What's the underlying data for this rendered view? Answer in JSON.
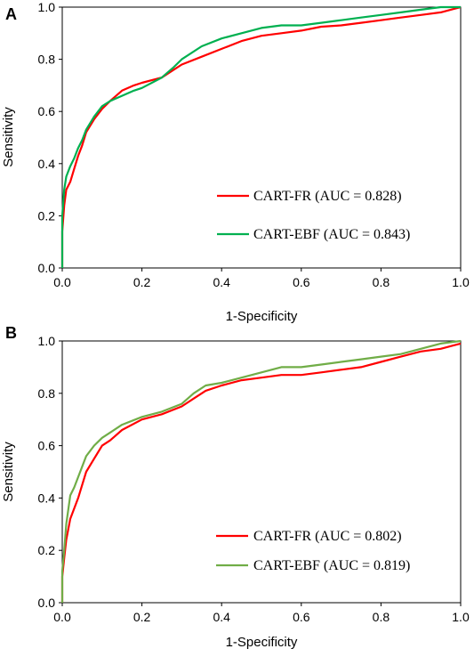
{
  "chart_data": [
    {
      "type": "line",
      "panel_label": "A",
      "xlabel": "1-Specificity",
      "ylabel": "Sensitivity",
      "xlim": [
        0,
        1
      ],
      "ylim": [
        0,
        1
      ],
      "xticks": [
        "0.0",
        "0.2",
        "0.4",
        "0.6",
        "0.8",
        "1.0"
      ],
      "yticks": [
        "0.0",
        "0.2",
        "0.4",
        "0.6",
        "0.8",
        "1.0"
      ],
      "grid": false,
      "legend_position": "bottom-right",
      "series": [
        {
          "name": "CART-FR (AUC = 0.828)",
          "color": "#ff0000",
          "x": [
            0,
            0,
            0.005,
            0.01,
            0.02,
            0.03,
            0.04,
            0.05,
            0.06,
            0.08,
            0.1,
            0.12,
            0.15,
            0.18,
            0.2,
            0.25,
            0.28,
            0.3,
            0.35,
            0.4,
            0.45,
            0.5,
            0.55,
            0.6,
            0.65,
            0.7,
            0.75,
            0.8,
            0.85,
            0.9,
            0.95,
            1.0
          ],
          "y": [
            0,
            0.14,
            0.24,
            0.3,
            0.33,
            0.38,
            0.43,
            0.47,
            0.52,
            0.57,
            0.61,
            0.64,
            0.68,
            0.7,
            0.71,
            0.73,
            0.76,
            0.78,
            0.81,
            0.84,
            0.87,
            0.89,
            0.9,
            0.91,
            0.925,
            0.93,
            0.94,
            0.95,
            0.96,
            0.97,
            0.98,
            1.0
          ]
        },
        {
          "name": "CART-EBF (AUC = 0.843)",
          "color": "#00b050",
          "x": [
            0,
            0,
            0.005,
            0.01,
            0.02,
            0.03,
            0.04,
            0.05,
            0.06,
            0.08,
            0.1,
            0.12,
            0.15,
            0.18,
            0.2,
            0.25,
            0.28,
            0.3,
            0.35,
            0.4,
            0.45,
            0.5,
            0.55,
            0.6,
            0.65,
            0.7,
            0.75,
            0.8,
            0.85,
            0.9,
            0.95,
            1.0
          ],
          "y": [
            0,
            0.2,
            0.3,
            0.35,
            0.39,
            0.42,
            0.46,
            0.49,
            0.53,
            0.58,
            0.62,
            0.64,
            0.66,
            0.68,
            0.69,
            0.73,
            0.77,
            0.8,
            0.85,
            0.88,
            0.9,
            0.92,
            0.93,
            0.93,
            0.94,
            0.95,
            0.96,
            0.97,
            0.98,
            0.99,
            1.0,
            1.0
          ]
        }
      ]
    },
    {
      "type": "line",
      "panel_label": "B",
      "xlabel": "1-Specificity",
      "ylabel": "Sensitivity",
      "xlim": [
        0,
        1
      ],
      "ylim": [
        0,
        1
      ],
      "xticks": [
        "0.0",
        "0.2",
        "0.4",
        "0.6",
        "0.8",
        "1.0"
      ],
      "yticks": [
        "0.0",
        "0.2",
        "0.4",
        "0.6",
        "0.8",
        "1.0"
      ],
      "grid": false,
      "legend_position": "bottom-right",
      "series": [
        {
          "name": "CART-FR (AUC = 0.802)",
          "color": "#ff0000",
          "x": [
            0,
            0,
            0.005,
            0.01,
            0.02,
            0.03,
            0.04,
            0.05,
            0.06,
            0.08,
            0.1,
            0.12,
            0.15,
            0.2,
            0.25,
            0.3,
            0.33,
            0.36,
            0.4,
            0.45,
            0.5,
            0.55,
            0.6,
            0.65,
            0.7,
            0.75,
            0.8,
            0.85,
            0.9,
            0.95,
            1.0
          ],
          "y": [
            0,
            0.1,
            0.17,
            0.24,
            0.32,
            0.36,
            0.4,
            0.45,
            0.5,
            0.55,
            0.6,
            0.62,
            0.66,
            0.7,
            0.72,
            0.75,
            0.78,
            0.81,
            0.83,
            0.85,
            0.86,
            0.87,
            0.87,
            0.88,
            0.89,
            0.9,
            0.92,
            0.94,
            0.96,
            0.97,
            0.99
          ]
        },
        {
          "name": "CART-EBF (AUC = 0.819)",
          "color": "#70ad47",
          "x": [
            0,
            0,
            0.005,
            0.01,
            0.02,
            0.03,
            0.04,
            0.05,
            0.06,
            0.08,
            0.1,
            0.12,
            0.15,
            0.2,
            0.25,
            0.3,
            0.33,
            0.36,
            0.4,
            0.45,
            0.5,
            0.55,
            0.6,
            0.65,
            0.7,
            0.75,
            0.8,
            0.85,
            0.9,
            0.95,
            1.0
          ],
          "y": [
            0,
            0.12,
            0.2,
            0.3,
            0.41,
            0.44,
            0.48,
            0.52,
            0.56,
            0.6,
            0.63,
            0.65,
            0.68,
            0.71,
            0.73,
            0.76,
            0.8,
            0.83,
            0.84,
            0.86,
            0.88,
            0.9,
            0.9,
            0.91,
            0.92,
            0.93,
            0.94,
            0.95,
            0.97,
            0.99,
            1.0
          ]
        }
      ]
    }
  ]
}
